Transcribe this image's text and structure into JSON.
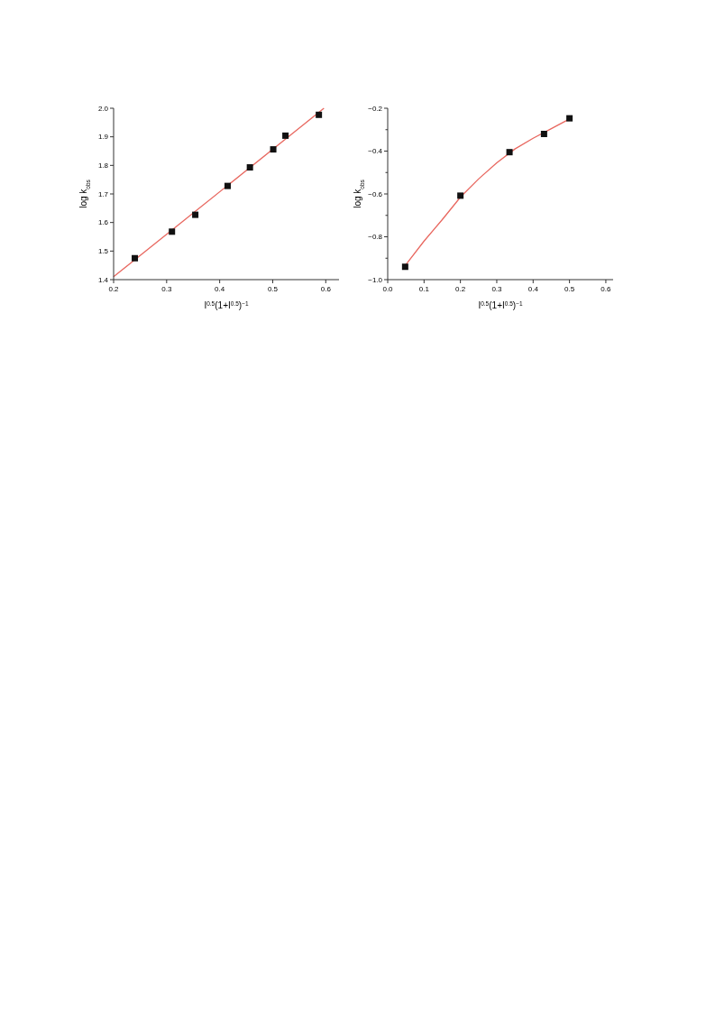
{
  "chart_data": [
    {
      "type": "scatter",
      "xlabel": "I$^{0.5}$(1+I$^{0.5}$)$^{−1}$",
      "ylabel": "log k$_{obs}$",
      "xlim": [
        0.2,
        0.625
      ],
      "ylim": [
        1.4,
        2.0
      ],
      "xticks": [
        0.2,
        0.3,
        0.4,
        0.5,
        0.6
      ],
      "yticks": [
        1.4,
        1.5,
        1.6,
        1.7,
        1.8,
        1.9,
        {
          "value": 2.0,
          "label": "2.0"
        }
      ],
      "grid": false,
      "series": [
        {
          "type": "scatter",
          "color": "#111111",
          "marker": "square",
          "x": [
            0.24,
            0.31,
            0.354,
            0.415,
            0.457,
            0.501,
            0.524,
            0.587
          ],
          "values": [
            1.475,
            1.568,
            1.627,
            1.728,
            1.793,
            1.856,
            1.904,
            1.977
          ]
        },
        {
          "type": "line",
          "color": "#e8675f",
          "marker": "none",
          "line_style": "solid",
          "x": [
            0.2,
            0.5966
          ],
          "values": [
            1.41,
            2.0
          ]
        }
      ]
    },
    {
      "type": "scatter",
      "xlabel": "I$^{0.5}$(1+I$^{0.5}$)$^{−1}$",
      "ylabel": "log k$_{obs}$",
      "xlim": [
        0.0,
        0.62
      ],
      "ylim": [
        -1.0,
        -0.2
      ],
      "xticks": [
        {
          "value": 0.0,
          "label": "0.0"
        },
        0.1,
        0.2,
        0.3,
        0.4,
        0.5,
        0.6
      ],
      "yticks": [
        {
          "value": -1.0,
          "label": "−1.0"
        },
        {
          "value": -0.9,
          "label": null
        },
        {
          "value": -0.8,
          "label": "−0.8"
        },
        {
          "value": -0.7,
          "label": null
        },
        {
          "value": -0.6,
          "label": "−0.6"
        },
        {
          "value": -0.5,
          "label": null
        },
        {
          "value": -0.4,
          "label": "−0.4"
        },
        {
          "value": -0.3,
          "label": null
        },
        {
          "value": -0.2,
          "label": "−0.2"
        }
      ],
      "grid": false,
      "series": [
        {
          "type": "scatter",
          "color": "#111111",
          "marker": "square",
          "x": [
            0.048,
            0.2,
            0.335,
            0.43,
            0.5
          ],
          "values": [
            -0.94,
            -0.608,
            -0.405,
            -0.32,
            -0.247
          ]
        },
        {
          "type": "line",
          "color": "#e8675f",
          "marker": "none",
          "line_style": "solid",
          "x": [
            0.05,
            0.1,
            0.15,
            0.2,
            0.25,
            0.3,
            0.35,
            0.4,
            0.45,
            0.5
          ],
          "values": [
            -0.93,
            -0.82,
            -0.72,
            -0.615,
            -0.53,
            -0.455,
            -0.39,
            -0.34,
            -0.295,
            -0.25
          ]
        }
      ]
    }
  ]
}
